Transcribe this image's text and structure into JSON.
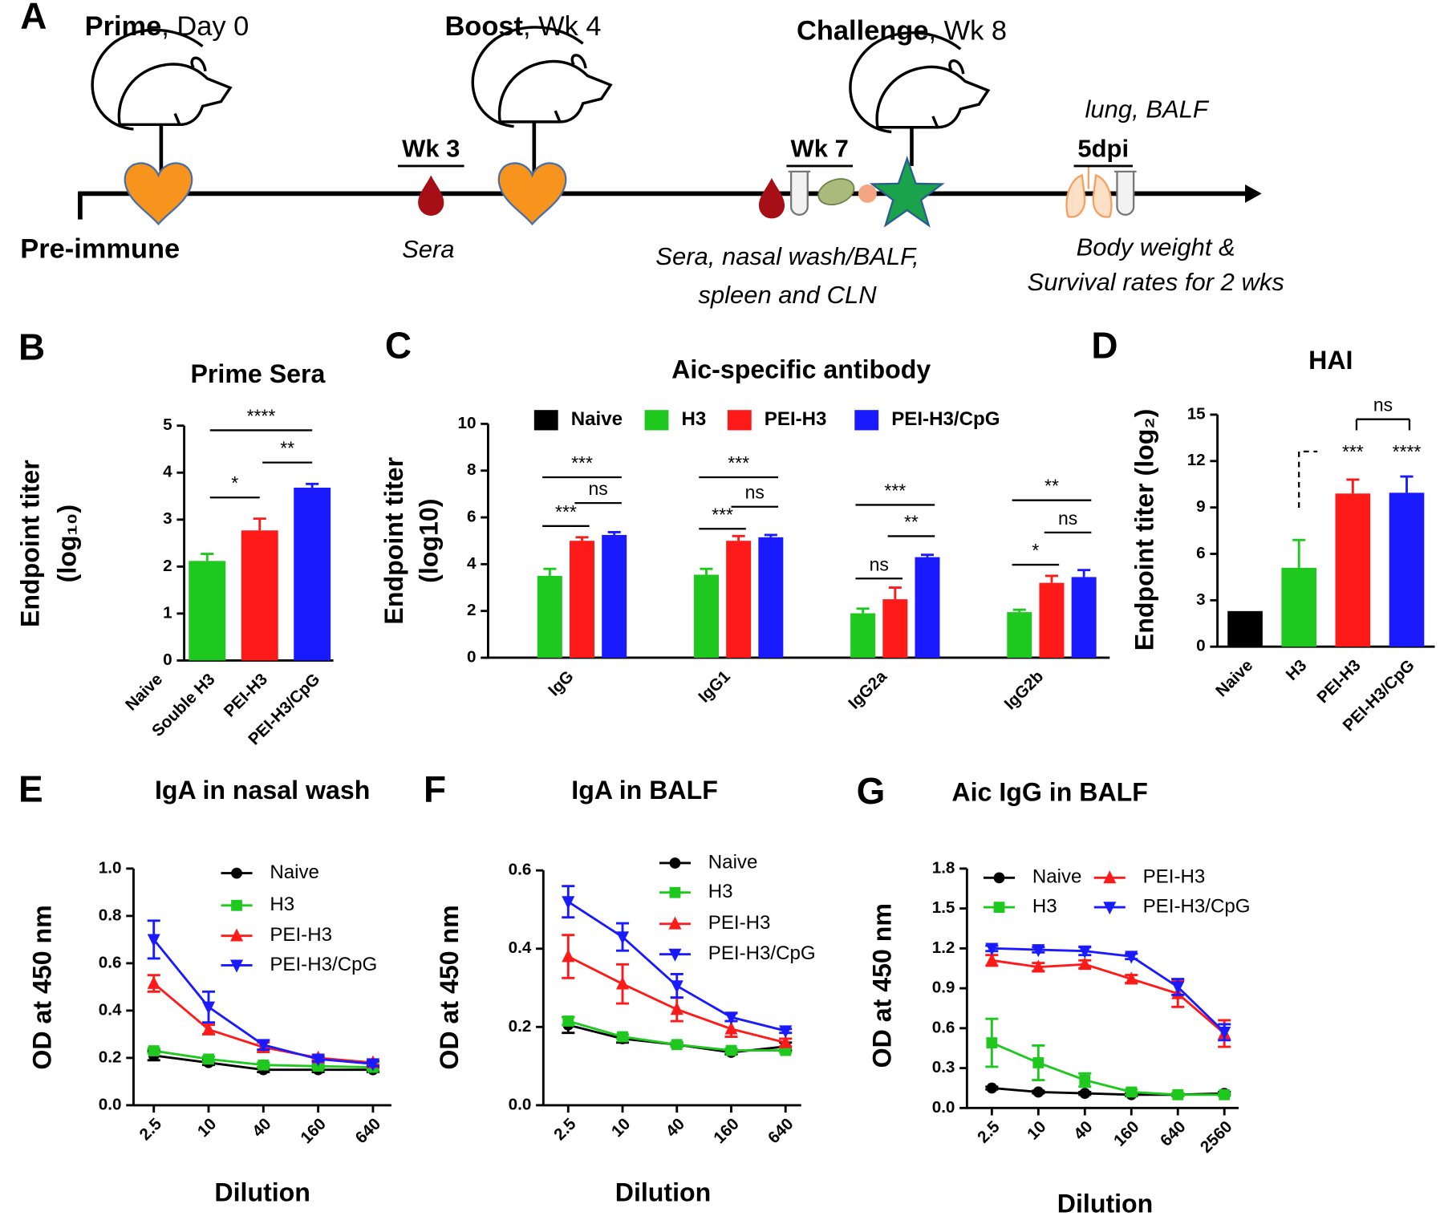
{
  "panel_labels": [
    "A",
    "B",
    "C",
    "D",
    "E",
    "F",
    "G"
  ],
  "timeline": {
    "events": [
      {
        "label": "Prime",
        "detail": ", Day 0"
      },
      {
        "label": "Boost",
        "detail": ", Wk 4"
      },
      {
        "label": "Challenge",
        "detail": ", Wk 8"
      }
    ],
    "samplings": [
      "Wk 3",
      "Wk 7",
      "5dpi"
    ],
    "start": "Pre-immune",
    "notes": [
      "Sera",
      "Sera, nasal wash/BALF,",
      "spleen and CLN",
      "lung, BALF",
      "Body weight &",
      "Survival rates for 2 wks"
    ]
  },
  "chart_data": [
    {
      "type": "bar",
      "title": "Prime Sera",
      "y_label": [
        "Endpoint titer",
        "(log₁₀)"
      ],
      "categories": [
        "Naive",
        "Souble H3",
        "PEI-H3",
        "PEI-H3/CpG"
      ],
      "values": [
        0,
        2.12,
        2.77,
        3.68
      ],
      "errors": [
        null,
        0.15,
        0.25,
        0.08
      ],
      "colors": [
        "#000000",
        "#1ec81e",
        "#ff1a1a",
        "#1a1aff"
      ],
      "ylim": [
        0,
        5
      ],
      "yticks": [
        0,
        1,
        2,
        3,
        4,
        5
      ],
      "annotations": [
        {
          "text": "****",
          "between": [
            1,
            3
          ]
        },
        {
          "text": "*",
          "between": [
            1,
            2
          ]
        },
        {
          "text": "**",
          "between": [
            2,
            3
          ]
        }
      ]
    },
    {
      "type": "grouped_bar",
      "title": "Aic-specific antibody",
      "y_label": [
        "Endpoint titer",
        "(log10)"
      ],
      "categories": [
        "IgG",
        "IgG1",
        "IgG2a",
        "IgG2b"
      ],
      "series": [
        {
          "name": "Naive",
          "color": "#000000",
          "values": [
            0,
            0,
            0,
            0
          ],
          "errors": [
            null,
            null,
            null,
            null
          ]
        },
        {
          "name": "H3",
          "color": "#1ec81e",
          "values": [
            3.5,
            3.55,
            1.9,
            1.95
          ],
          "errors": [
            0.3,
            0.25,
            0.2,
            0.1
          ]
        },
        {
          "name": "PEI-H3",
          "color": "#ff1a1a",
          "values": [
            5.0,
            5.0,
            2.5,
            3.2
          ],
          "errors": [
            0.15,
            0.2,
            0.5,
            0.3
          ]
        },
        {
          "name": "PEI-H3/CpG",
          "color": "#1a1aff",
          "values": [
            5.25,
            5.15,
            4.3,
            3.45
          ],
          "errors": [
            0.12,
            0.1,
            0.1,
            0.3
          ]
        }
      ],
      "ylim": [
        0,
        10
      ],
      "yticks": [
        0,
        2,
        4,
        6,
        8,
        10
      ],
      "annotations": [
        {
          "text": "***",
          "category": 0,
          "between": [
            1,
            3
          ]
        },
        {
          "text": "***",
          "category": 0,
          "between": [
            1,
            2
          ]
        },
        {
          "text": "ns",
          "category": 0,
          "between": [
            2,
            3
          ]
        },
        {
          "text": "***",
          "category": 1,
          "between": [
            1,
            3
          ]
        },
        {
          "text": "***",
          "category": 1,
          "between": [
            1,
            2
          ]
        },
        {
          "text": "ns",
          "category": 1,
          "between": [
            2,
            3
          ]
        },
        {
          "text": "***",
          "category": 2,
          "between": [
            1,
            3
          ]
        },
        {
          "text": "ns",
          "category": 2,
          "between": [
            1,
            2
          ]
        },
        {
          "text": "**",
          "category": 2,
          "between": [
            2,
            3
          ]
        },
        {
          "text": "**",
          "category": 3,
          "between": [
            1,
            3
          ]
        },
        {
          "text": "*",
          "category": 3,
          "between": [
            1,
            2
          ]
        },
        {
          "text": "ns",
          "category": 3,
          "between": [
            2,
            3
          ]
        }
      ]
    },
    {
      "type": "bar",
      "title": "HAI",
      "y_label": [
        "Endpoint titer (log₂)"
      ],
      "categories": [
        "Naive",
        "H3",
        "PEI-H3",
        "PEI-H3/CpG"
      ],
      "values": [
        2.3,
        5.1,
        9.9,
        9.95
      ],
      "errors": [
        null,
        1.8,
        0.9,
        1.05
      ],
      "colors": [
        "#000000",
        "#1ec81e",
        "#ff1a1a",
        "#1a1aff"
      ],
      "ylim": [
        0,
        15
      ],
      "yticks": [
        0,
        3,
        6,
        9,
        12,
        15
      ],
      "annotations": [
        {
          "text": "***",
          "between": [
            2
          ]
        },
        {
          "text": "****",
          "between": [
            3
          ]
        },
        {
          "text": "ns",
          "between": [
            2,
            3
          ]
        }
      ]
    },
    {
      "type": "line",
      "title": "IgA in nasal wash",
      "x_label": "Dilution",
      "y_label": [
        "OD at 450 nm"
      ],
      "categories": [
        "2.5",
        "10",
        "40",
        "160",
        "640"
      ],
      "series": [
        {
          "name": "Naive",
          "color": "#000000",
          "marker": "circle",
          "values": [
            0.21,
            0.18,
            0.15,
            0.15,
            0.15
          ],
          "errors": [
            0.02,
            0.01,
            0.01,
            0.01,
            0.01
          ]
        },
        {
          "name": "H3",
          "color": "#1ec81e",
          "marker": "square",
          "values": [
            0.23,
            0.195,
            0.17,
            0.165,
            0.16
          ],
          "errors": [
            0.01,
            0.01,
            0.01,
            0.01,
            0.01
          ]
        },
        {
          "name": "PEI-H3",
          "color": "#ff1a1a",
          "marker": "triangle-up",
          "values": [
            0.515,
            0.32,
            0.245,
            0.2,
            0.18
          ],
          "errors": [
            0.035,
            0.02,
            0.02,
            0.01,
            0.01
          ]
        },
        {
          "name": "PEI-H3/CpG",
          "color": "#1a1aff",
          "marker": "triangle-down",
          "values": [
            0.7,
            0.415,
            0.255,
            0.195,
            0.175
          ],
          "errors": [
            0.08,
            0.065,
            0.02,
            0.01,
            0.01
          ]
        }
      ],
      "ylim": [
        0,
        1.0
      ],
      "yticks": [
        {
          "value": 0,
          "label": "0.0"
        },
        0.2,
        0.4,
        0.6,
        0.8,
        {
          "value": 1.0,
          "label": "1.0"
        }
      ]
    },
    {
      "type": "line",
      "title": "IgA in BALF",
      "x_label": "Dilution",
      "y_label": [
        "OD at 450 nm"
      ],
      "categories": [
        "2.5",
        "10",
        "40",
        "160",
        "640"
      ],
      "series": [
        {
          "name": "Naive",
          "color": "#000000",
          "marker": "circle",
          "values": [
            0.205,
            0.17,
            0.155,
            0.135,
            0.15
          ],
          "errors": [
            0.02,
            0.01,
            0.005,
            0.005,
            0.01
          ]
        },
        {
          "name": "H3",
          "color": "#1ec81e",
          "marker": "square",
          "values": [
            0.215,
            0.175,
            0.155,
            0.14,
            0.14
          ],
          "errors": [
            0.01,
            0.005,
            0.005,
            0.005,
            0.005
          ]
        },
        {
          "name": "PEI-H3",
          "color": "#ff1a1a",
          "marker": "triangle-up",
          "values": [
            0.38,
            0.31,
            0.245,
            0.195,
            0.16
          ],
          "errors": [
            0.055,
            0.05,
            0.03,
            0.02,
            0.01
          ]
        },
        {
          "name": "PEI-H3/CpG",
          "color": "#1a1aff",
          "marker": "triangle-down",
          "values": [
            0.52,
            0.43,
            0.305,
            0.225,
            0.19
          ],
          "errors": [
            0.04,
            0.035,
            0.03,
            0.01,
            0.005
          ]
        }
      ],
      "ylim": [
        0,
        0.6
      ],
      "yticks": [
        {
          "value": 0,
          "label": "0.0"
        },
        0.2,
        0.4,
        0.6
      ]
    },
    {
      "type": "line",
      "title": "Aic IgG in BALF",
      "x_label": "Dilution",
      "y_label": [
        "OD at 450 nm"
      ],
      "categories": [
        "2.5",
        "10",
        "40",
        "160",
        "640",
        "2560"
      ],
      "series": [
        {
          "name": "Naive",
          "color": "#000000",
          "marker": "circle",
          "values": [
            0.15,
            0.12,
            0.11,
            0.1,
            0.1,
            0.11
          ],
          "errors": [
            0.01,
            0.01,
            0.01,
            0.01,
            0.01,
            0.01
          ]
        },
        {
          "name": "H3",
          "color": "#1ec81e",
          "marker": "square",
          "values": [
            0.49,
            0.34,
            0.21,
            0.12,
            0.1,
            0.1
          ],
          "errors": [
            0.18,
            0.13,
            0.05,
            0.02,
            0.01,
            0.01
          ]
        },
        {
          "name": "PEI-H3",
          "color": "#ff1a1a",
          "marker": "triangle-up",
          "values": [
            1.11,
            1.06,
            1.08,
            0.97,
            0.86,
            0.56
          ],
          "errors": [
            0.04,
            0.03,
            0.03,
            0.03,
            0.1,
            0.1
          ]
        },
        {
          "name": "PEI-H3/CpG",
          "color": "#1a1aff",
          "marker": "triangle-down",
          "values": [
            1.2,
            1.19,
            1.18,
            1.14,
            0.91,
            0.57
          ],
          "errors": [
            0.02,
            0.02,
            0.03,
            0.02,
            0.06,
            0.06
          ]
        }
      ],
      "ylim": [
        0,
        1.8
      ],
      "yticks": [
        {
          "value": 0,
          "label": "0.0"
        },
        0.3,
        0.6,
        0.9,
        1.2,
        1.5,
        1.8
      ]
    }
  ]
}
